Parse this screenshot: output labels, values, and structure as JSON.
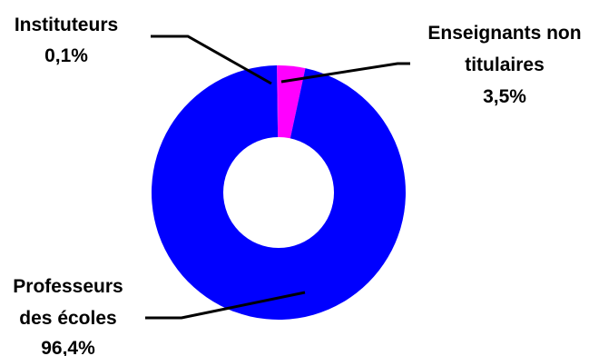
{
  "chart_data": {
    "type": "pie",
    "donut": true,
    "title": "",
    "slices": [
      {
        "name": "Professeurs des écoles",
        "label_lines": [
          "Professeurs",
          "des écoles"
        ],
        "value_label": "96,4%",
        "value": 96.4,
        "color": "#0000ff"
      },
      {
        "name": "Instituteurs",
        "label_lines": [
          "Instituteurs"
        ],
        "value_label": "0,1%",
        "value": 0.1,
        "color": "#ff00ff"
      },
      {
        "name": "Enseignants non titulaires",
        "label_lines": [
          "Enseignants non",
          "titulaires"
        ],
        "value_label": "3,5%",
        "value": 3.5,
        "color": "#ff00ff"
      }
    ]
  }
}
